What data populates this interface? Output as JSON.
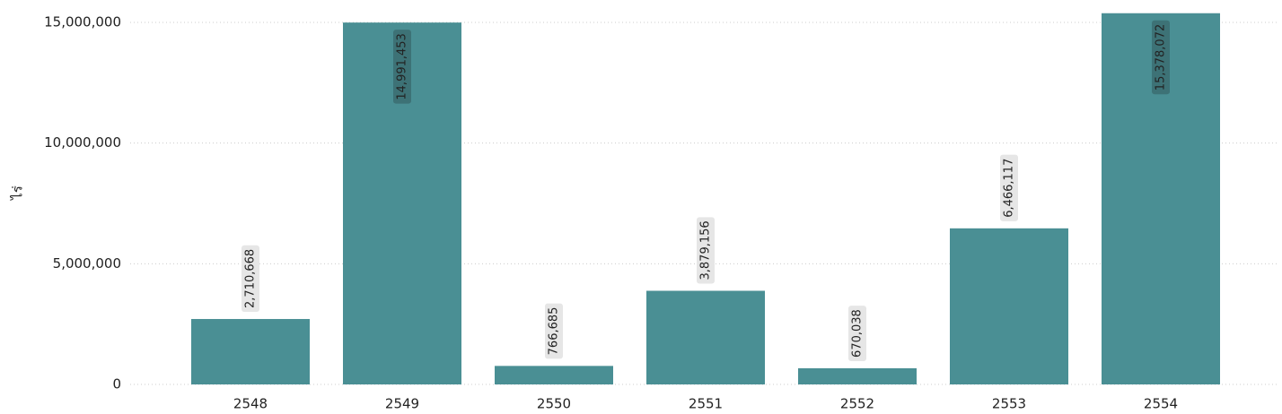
{
  "chart_data": {
    "type": "bar",
    "y_label": "ไร่",
    "categories": [
      "2548",
      "2549",
      "2550",
      "2551",
      "2552",
      "2553",
      "2554"
    ],
    "values": [
      2710668,
      14991453,
      766685,
      3879156,
      670038,
      6466117,
      15378072
    ],
    "value_labels": [
      "2,710,668",
      "14,991,453",
      "766,685",
      "3,879,156",
      "670,038",
      "6,466,117",
      "15,378,072"
    ],
    "color": "#4a8f94",
    "ylim": [
      0,
      16000000
    ],
    "yticks": [
      0,
      {
        "value": 5000000,
        "label": "5,000,000"
      },
      {
        "value": 10000000,
        "label": "10,000,000"
      },
      {
        "value": 15000000,
        "label": "15,000,000"
      }
    ],
    "grid": true
  }
}
